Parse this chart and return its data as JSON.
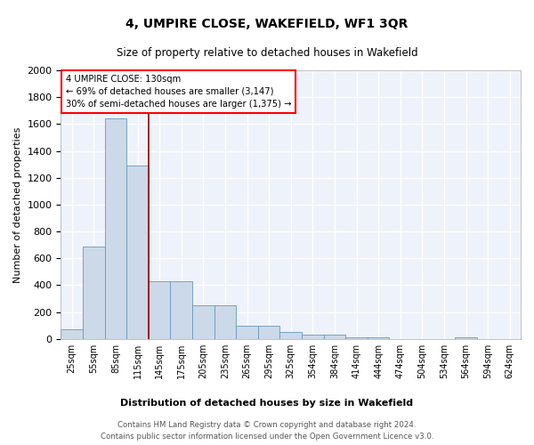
{
  "title": "4, UMPIRE CLOSE, WAKEFIELD, WF1 3QR",
  "subtitle": "Size of property relative to detached houses in Wakefield",
  "xlabel": "Distribution of detached houses by size in Wakefield",
  "ylabel": "Number of detached properties",
  "footer_line1": "Contains HM Land Registry data © Crown copyright and database right 2024.",
  "footer_line2": "Contains public sector information licensed under the Open Government Licence v3.0.",
  "annotation_title": "4 UMPIRE CLOSE: 130sqm",
  "annotation_line2": "← 69% of detached houses are smaller (3,147)",
  "annotation_line3": "30% of semi-detached houses are larger (1,375) →",
  "bar_color": "#ccd9e8",
  "bar_edge_color": "#6699bb",
  "vline_color": "#990000",
  "vline_x": 4,
  "background_color": "#eef2fa",
  "ylim": [
    0,
    2000
  ],
  "categories": [
    "25sqm",
    "55sqm",
    "85sqm",
    "115sqm",
    "145sqm",
    "175sqm",
    "205sqm",
    "235sqm",
    "265sqm",
    "295sqm",
    "325sqm",
    "354sqm",
    "384sqm",
    "414sqm",
    "444sqm",
    "474sqm",
    "504sqm",
    "534sqm",
    "564sqm",
    "594sqm",
    "624sqm"
  ],
  "values": [
    70,
    690,
    1640,
    1290,
    430,
    430,
    250,
    250,
    100,
    100,
    50,
    30,
    30,
    15,
    15,
    0,
    0,
    0,
    15,
    0,
    0
  ],
  "yticks": [
    0,
    200,
    400,
    600,
    800,
    1000,
    1200,
    1400,
    1600,
    1800,
    2000
  ]
}
